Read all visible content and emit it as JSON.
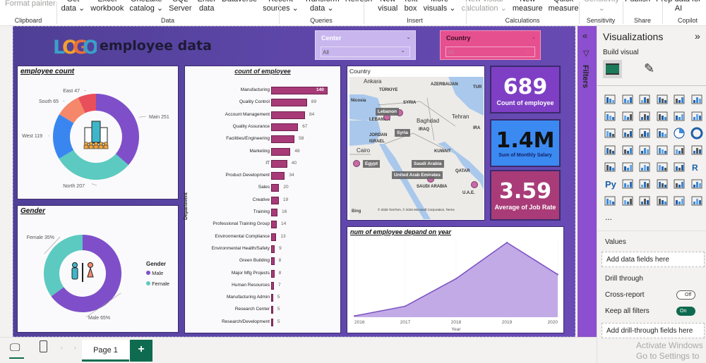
{
  "ribbon": {
    "items": [
      {
        "l1": "",
        "l2": "Format painter",
        "dis": true
      },
      {
        "l1": "Get",
        "l2": "data ⌄"
      },
      {
        "l1": "Excel",
        "l2": "workbook"
      },
      {
        "l1": "OneLake",
        "l2": "catalog ⌄"
      },
      {
        "l1": "SQL",
        "l2": "Server"
      },
      {
        "l1": "Enter",
        "l2": "data"
      },
      {
        "l1": "Dataverse",
        "l2": ""
      },
      {
        "l1": "Recent",
        "l2": "sources ⌄"
      },
      {
        "l1": "Transform",
        "l2": "data ⌄"
      },
      {
        "l1": "Refresh",
        "l2": ""
      },
      {
        "l1": "New",
        "l2": "visual"
      },
      {
        "l1": "Text",
        "l2": "box"
      },
      {
        "l1": "More",
        "l2": "visuals ⌄"
      },
      {
        "l1": "New visual",
        "l2": "calculation ⌄",
        "dis": true
      },
      {
        "l1": "New",
        "l2": "measure"
      },
      {
        "l1": "Quick",
        "l2": "measure"
      },
      {
        "l1": "Sensitivity",
        "l2": "⌄",
        "dis": true
      },
      {
        "l1": "Publish",
        "l2": ""
      },
      {
        "l1": "Prep data for",
        "l2": "AI"
      }
    ],
    "groups": [
      "Clipboard",
      "Data",
      "Queries",
      "Insert",
      "Calculations",
      "Sensitivity",
      "Share",
      "Copilot"
    ]
  },
  "report": {
    "logo_text": "LOGO",
    "title": "employee data",
    "slicers": [
      {
        "label": "Center",
        "value": "All",
        "color": "#c9b6ef"
      },
      {
        "label": "Country",
        "value": "All",
        "color": "#e6508f"
      }
    ],
    "employee_count": {
      "title": "employee count",
      "slices": [
        {
          "name": "Main",
          "value": 251,
          "color": "#7f4fc9"
        },
        {
          "name": "North",
          "value": 207,
          "color": "#5ccac0"
        },
        {
          "name": "West",
          "value": 119,
          "color": "#3a86f0"
        },
        {
          "name": "South",
          "value": 65,
          "color": "#f5876a"
        },
        {
          "name": "East",
          "value": 47,
          "color": "#e84f5a"
        }
      ],
      "labels": [
        "Main 251",
        "North 207",
        "West 119",
        "South 65",
        "East 47"
      ]
    },
    "gender": {
      "title": "Gender",
      "slices": [
        {
          "name": "Male",
          "value": 65,
          "color": "#7f4fc9"
        },
        {
          "name": "Female",
          "value": 35,
          "color": "#5ccac0"
        }
      ],
      "labels": [
        "Male 65%",
        "Female 35%"
      ],
      "legend_title": "Gender",
      "legend": [
        "Male",
        "Female"
      ]
    },
    "kpis": [
      {
        "value": "689",
        "label": "Count of employee",
        "color": "#7e3fc4",
        "text": "#ffffff"
      },
      {
        "value": "1.4M",
        "label": "Sum of Monthly Salary",
        "color": "#3b8af2",
        "text": "#111111"
      },
      {
        "value": "3.59",
        "label": "Average of Job Rate",
        "color": "#a93c78",
        "text": "#ffffff"
      }
    ],
    "map": {
      "title": "Country",
      "places": [
        "Ankara",
        "TÜRKIYE",
        "AZERBAIJAN",
        "TUR",
        "Nicosia",
        "SYRIA",
        "LEBANON",
        "Baghdad",
        "Tehran",
        "IRAQ",
        "IRA",
        "JORDAN",
        "ISRAEL",
        "Cairo",
        "KUWAIT",
        "QATAR",
        "U.A.E.",
        "SAUDI ARABIA"
      ],
      "tags": [
        "Lebanon",
        "Syria",
        "Egypt",
        "Saudi Arabia",
        "United Arab Emirates"
      ],
      "attribution": "© 2025 TomTom, © 2025 Microsoft Corporation, Terms",
      "brand": "Bing"
    }
  },
  "chart_data": [
    {
      "type": "bar",
      "title": "count of employee",
      "ylabel": "Department",
      "categories": [
        "Manufacturing",
        "Quality Control",
        "Account Management",
        "Quality Assurance",
        "Facilities/Engineering",
        "Marketing",
        "IT",
        "Product Development",
        "Sales",
        "Creative",
        "Training",
        "Professional Training Group",
        "Environmental Compliance",
        "Environmental Health/Safety",
        "Green Building",
        "Major Mfg Projects",
        "Human Resources",
        "Manufacturing Admin",
        "Research Center",
        "Research/Development"
      ],
      "values": [
        140,
        89,
        84,
        67,
        58,
        48,
        40,
        34,
        20,
        19,
        16,
        14,
        13,
        9,
        8,
        8,
        7,
        5,
        5,
        5
      ],
      "color": "#a83a78"
    },
    {
      "type": "area",
      "title": "num of employee depand on year",
      "xlabel": "Year",
      "x": [
        "2016",
        "2017",
        "2018",
        "2019",
        "2020"
      ],
      "values": [
        5,
        45,
        158,
        306,
        175
      ],
      "color": "#7a4fc0",
      "fill": "#c2aae6",
      "grid": true
    }
  ],
  "filters": {
    "label": "Filters"
  },
  "viz": {
    "title": "Visualizations",
    "build_visual": "Build visual",
    "icons": [
      "stacked-bar",
      "stacked-column",
      "clustered-bar",
      "clustered-column",
      "100-bar",
      "100-column",
      "line",
      "area",
      "stacked-area",
      "100-area",
      "line-column",
      "line-clustered-column",
      "ribbon",
      "waterfall",
      "funnel",
      "scatter",
      "pie",
      "donut",
      "treemap",
      "map",
      "filled-map",
      "azure-map",
      "gauge",
      "card",
      "multi-row-card",
      "kpi",
      "slicer",
      "table",
      "matrix",
      "r-script",
      "python",
      "key-influencers",
      "decomposition-tree",
      "qa",
      "paginated",
      "goals",
      "report-builder",
      "smart-narrative-card",
      "smart-slicer",
      "power-apps",
      "power-automate",
      "more-arrow"
    ],
    "more": "...",
    "values_label": "Values",
    "add_fields": "Add data fields here",
    "drill_through": "Drill through",
    "cross_report": "Cross-report",
    "cross_report_state": "Off",
    "keep_filters": "Keep all filters",
    "keep_filters_state": "On",
    "add_drill": "Add drill-through fields here",
    "watermark1": "Activate Windows",
    "watermark2": "Go to Settings to"
  },
  "bottom": {
    "page": "Page 1",
    "add": "+"
  }
}
